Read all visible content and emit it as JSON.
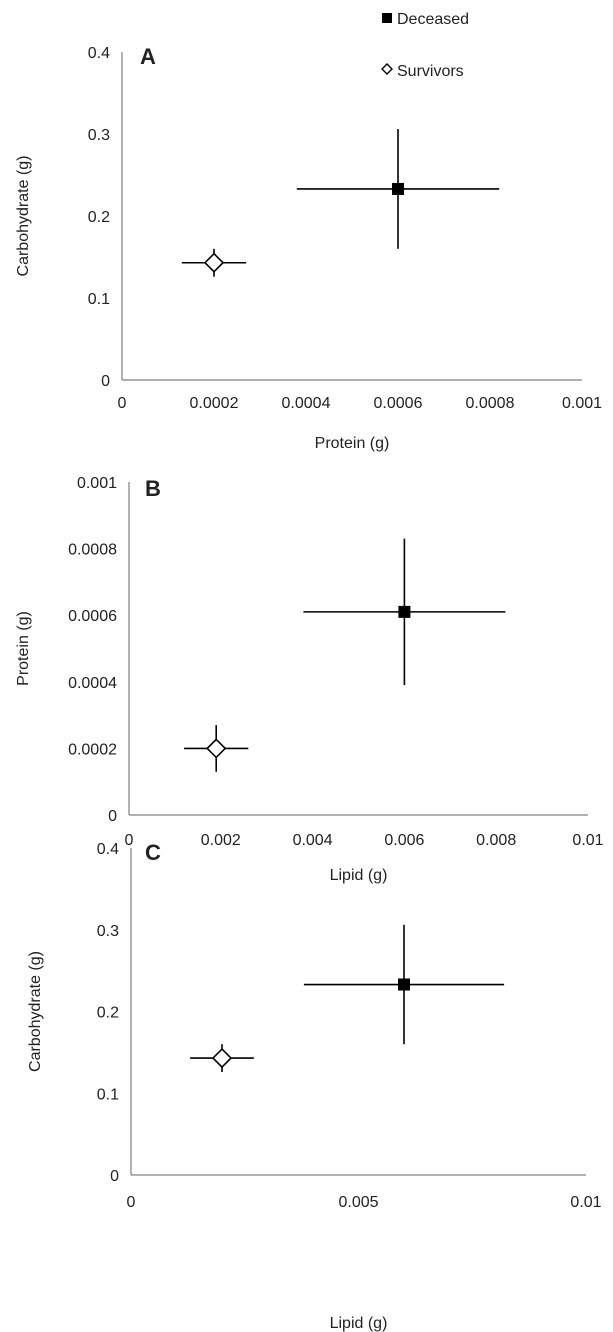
{
  "legend": [
    {
      "label": "Deceased",
      "marker": "square-filled"
    },
    {
      "label": "Survivors",
      "marker": "diamond-open"
    }
  ],
  "chart_data": [
    {
      "type": "scatter",
      "panel_label": "A",
      "xlabel": "Protein (g)",
      "ylabel": "Carbohydrate (g)",
      "xlim": [
        0,
        0.001
      ],
      "ylim": [
        0,
        0.4
      ],
      "x_ticks": [
        "0",
        "0.0002",
        "0.0004",
        "0.0006",
        "0.0008",
        "0.001"
      ],
      "y_ticks": [
        "0",
        "0.1",
        "0.2",
        "0.3",
        "0.4"
      ],
      "grid": false,
      "series": [
        {
          "name": "Deceased",
          "marker": "square-filled",
          "x": 0.0006,
          "y": 0.233,
          "x_err": 0.00022,
          "y_err": 0.073
        },
        {
          "name": "Survivors",
          "marker": "diamond-open",
          "x": 0.0002,
          "y": 0.143,
          "x_err": 7e-05,
          "y_err": 0.017
        }
      ]
    },
    {
      "type": "scatter",
      "panel_label": "B",
      "xlabel": "Lipid (g)",
      "ylabel": "Protein (g)",
      "xlim": [
        0,
        0.01
      ],
      "ylim": [
        0,
        0.001
      ],
      "x_ticks": [
        "0",
        "0.002",
        "0.004",
        "0.006",
        "0.008",
        "0.01"
      ],
      "y_ticks": [
        "0",
        "0.0002",
        "0.0004",
        "0.0006",
        "0.0008",
        "0.001"
      ],
      "grid": false,
      "series": [
        {
          "name": "Deceased",
          "marker": "square-filled",
          "x": 0.006,
          "y": 0.00061,
          "x_err": 0.0022,
          "y_err": 0.00022
        },
        {
          "name": "Survivors",
          "marker": "diamond-open",
          "x": 0.0019,
          "y": 0.0002,
          "x_err": 0.0007,
          "y_err": 7e-05
        }
      ]
    },
    {
      "type": "scatter",
      "panel_label": "C",
      "xlabel": "Lipid (g)",
      "ylabel": "Carbohydrate (g)",
      "xlim": [
        0,
        0.01
      ],
      "ylim": [
        0,
        0.4
      ],
      "x_ticks": [
        "0",
        "0.005",
        "0.01"
      ],
      "y_ticks": [
        "0",
        "0.1",
        "0.2",
        "0.3",
        "0.4"
      ],
      "grid": false,
      "series": [
        {
          "name": "Deceased",
          "marker": "square-filled",
          "x": 0.006,
          "y": 0.233,
          "x_err": 0.0022,
          "y_err": 0.073
        },
        {
          "name": "Survivors",
          "marker": "diamond-open",
          "x": 0.002,
          "y": 0.143,
          "x_err": 0.0007,
          "y_err": 0.017
        }
      ]
    }
  ]
}
